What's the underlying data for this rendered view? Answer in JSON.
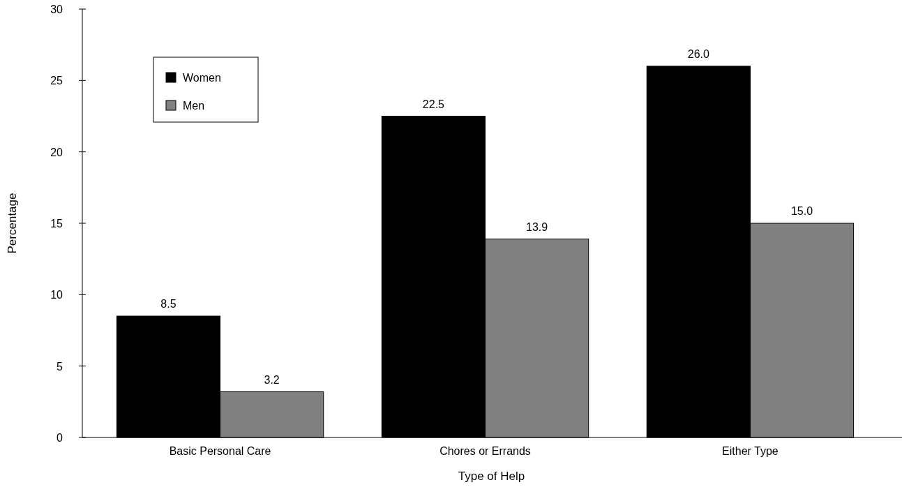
{
  "chart_data": {
    "type": "bar",
    "xlabel": "Type of Help",
    "ylabel": "Percentage",
    "categories": [
      "Basic Personal Care",
      "Chores or Errands",
      "Either Type"
    ],
    "series": [
      {
        "name": "Women",
        "color": "#000000",
        "values": [
          8.5,
          22.5,
          26.0
        ],
        "value_labels": [
          "8.5",
          "22.5",
          "26.0"
        ]
      },
      {
        "name": "Men",
        "color": "#808080",
        "values": [
          3.2,
          13.9,
          15.0
        ],
        "value_labels": [
          "3.2",
          "13.9",
          "15.0"
        ]
      }
    ],
    "ylim": [
      0,
      30
    ],
    "yticks": [
      0,
      5,
      10,
      15,
      20,
      25,
      30
    ],
    "grid": false,
    "legend": "top left"
  }
}
